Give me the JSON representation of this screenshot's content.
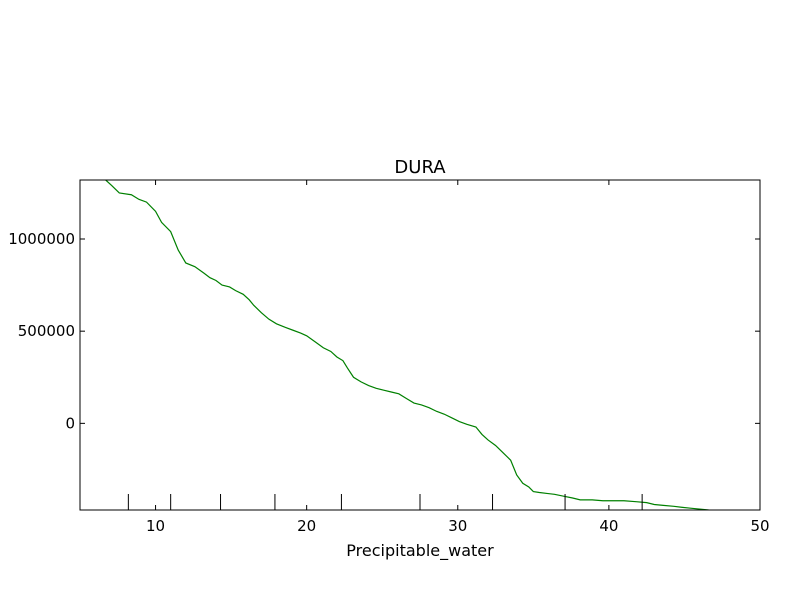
{
  "chart_data": {
    "type": "line",
    "title": "DURA",
    "xlabel": "Precipitable_water",
    "ylabel": "",
    "xlim": [
      5,
      50
    ],
    "ylim": [
      -470000,
      1320000
    ],
    "xticks": [
      10,
      20,
      30,
      40,
      50
    ],
    "yticks": [
      0,
      500000,
      1000000
    ],
    "rug": [
      8.2,
      11.0,
      14.3,
      17.9,
      22.3,
      27.5,
      32.3,
      37.1,
      42.2
    ],
    "grid": false,
    "series": [
      {
        "color": "#008000",
        "x": [
          6.7,
          7.1,
          7.6,
          8.4,
          8.9,
          9.4,
          10.0,
          10.4,
          11.0,
          11.5,
          12.0,
          12.6,
          13.2,
          13.6,
          14.0,
          14.4,
          14.9,
          15.3,
          15.8,
          16.2,
          16.5,
          17.0,
          17.5,
          18.0,
          18.6,
          19.1,
          19.6,
          20.0,
          20.6,
          21.1,
          21.6,
          22.0,
          22.4,
          22.7,
          23.1,
          23.6,
          24.1,
          24.6,
          25.1,
          25.6,
          26.1,
          26.6,
          27.1,
          27.6,
          28.1,
          28.6,
          29.1,
          29.6,
          30.1,
          30.6,
          31.2,
          31.6,
          32.0,
          32.5,
          33.0,
          33.5,
          33.9,
          34.3,
          34.7,
          35.0,
          35.4,
          35.9,
          36.4,
          37.0,
          37.6,
          38.1,
          38.9,
          39.6,
          40.2,
          41.0,
          41.8,
          42.5,
          43.0,
          43.6,
          44.3,
          44.8,
          45.4,
          46.0,
          46.6
        ],
        "values": [
          1320000,
          1290000,
          1250000,
          1240000,
          1215000,
          1200000,
          1150000,
          1090000,
          1040000,
          940000,
          870000,
          850000,
          815000,
          790000,
          775000,
          750000,
          740000,
          720000,
          700000,
          670000,
          640000,
          600000,
          565000,
          540000,
          520000,
          505000,
          490000,
          475000,
          440000,
          410000,
          390000,
          360000,
          340000,
          300000,
          250000,
          225000,
          205000,
          190000,
          180000,
          170000,
          160000,
          135000,
          110000,
          100000,
          85000,
          65000,
          50000,
          30000,
          10000,
          -5000,
          -20000,
          -60000,
          -90000,
          -120000,
          -160000,
          -200000,
          -280000,
          -325000,
          -345000,
          -370000,
          -375000,
          -380000,
          -385000,
          -395000,
          -405000,
          -415000,
          -415000,
          -420000,
          -420000,
          -420000,
          -425000,
          -430000,
          -440000,
          -445000,
          -450000,
          -455000,
          -460000,
          -465000,
          -470000
        ]
      }
    ]
  }
}
